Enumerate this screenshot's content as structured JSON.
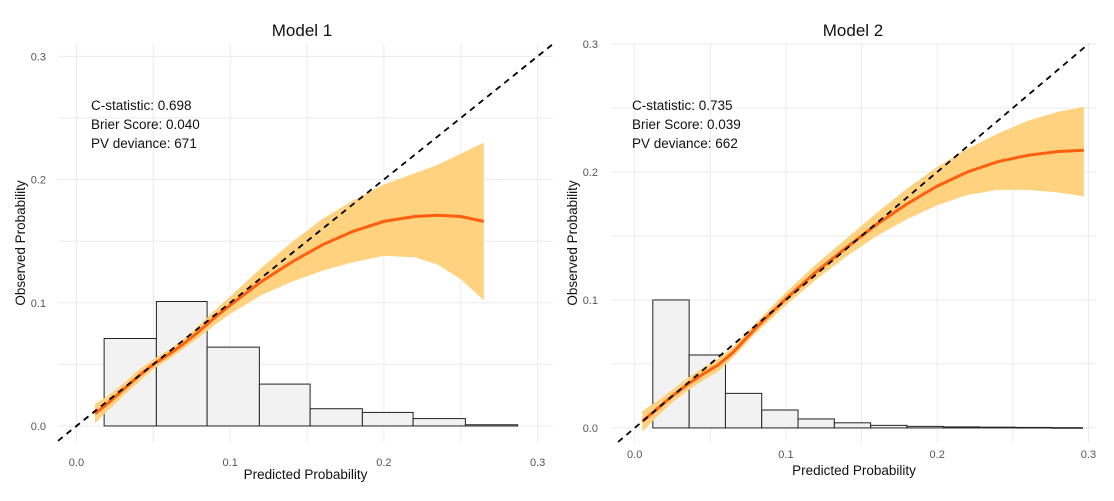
{
  "chart_data": [
    {
      "type": "calibration",
      "title": "Model 1",
      "xlabel": "Predicted Probability",
      "ylabel": "Observed Probability",
      "xlim": [
        -0.012,
        0.31
      ],
      "ylim": [
        -0.013,
        0.31
      ],
      "xticks": [
        0.0,
        0.1,
        0.2,
        0.3
      ],
      "xtick_labels": [
        "0.0",
        "0.1",
        "0.2",
        "0.3"
      ],
      "yticks": [
        0.0,
        0.1,
        0.2,
        0.3
      ],
      "ytick_labels": [
        "0.0",
        "0.1",
        "0.2",
        "0.3"
      ],
      "stats": [
        "C-statistic: 0.698",
        "Brier Score: 0.040",
        "PV deviance: 671"
      ],
      "reference_line": "y = x (dashed)",
      "histogram": {
        "bin_edges": [
          0.018,
          0.052,
          0.085,
          0.119,
          0.152,
          0.186,
          0.219,
          0.253,
          0.287
        ],
        "heights": [
          0.071,
          0.101,
          0.064,
          0.034,
          0.014,
          0.011,
          0.006,
          0.001
        ]
      },
      "smooth": {
        "x": [
          0.012,
          0.02,
          0.03,
          0.04,
          0.05,
          0.06,
          0.07,
          0.08,
          0.09,
          0.1,
          0.12,
          0.14,
          0.16,
          0.18,
          0.2,
          0.22,
          0.235,
          0.25,
          0.265
        ],
        "y": [
          0.01,
          0.018,
          0.029,
          0.04,
          0.05,
          0.058,
          0.067,
          0.077,
          0.088,
          0.098,
          0.117,
          0.133,
          0.147,
          0.158,
          0.166,
          0.17,
          0.171,
          0.17,
          0.166
        ],
        "lower": [
          0.002,
          0.012,
          0.024,
          0.035,
          0.046,
          0.054,
          0.063,
          0.072,
          0.082,
          0.091,
          0.106,
          0.117,
          0.126,
          0.133,
          0.138,
          0.137,
          0.131,
          0.119,
          0.102
        ],
        "upper": [
          0.018,
          0.024,
          0.034,
          0.045,
          0.054,
          0.062,
          0.071,
          0.082,
          0.094,
          0.105,
          0.128,
          0.149,
          0.168,
          0.183,
          0.196,
          0.205,
          0.212,
          0.221,
          0.23
        ]
      }
    },
    {
      "type": "calibration",
      "title": "Model 2",
      "xlabel": "Predicted Probability",
      "ylabel": "Observed Probability",
      "xlim": [
        -0.015,
        0.305
      ],
      "ylim": [
        -0.011,
        0.3
      ],
      "xticks": [
        0.0,
        0.1,
        0.2,
        0.3
      ],
      "xtick_labels": [
        "0.0",
        "0.1",
        "0.2",
        "0.3"
      ],
      "yticks": [
        0.0,
        0.1,
        0.2,
        0.3
      ],
      "ytick_labels": [
        "0.0",
        "0.1",
        "0.2",
        "0.3"
      ],
      "stats": [
        "C-statistic: 0.735",
        "Brier Score: 0.039",
        "PV deviance: 662"
      ],
      "reference_line": "y = x (dashed)",
      "histogram": {
        "bin_edges": [
          0.012,
          0.036,
          0.06,
          0.084,
          0.108,
          0.132,
          0.156,
          0.18,
          0.204,
          0.228,
          0.252,
          0.276,
          0.296
        ],
        "heights": [
          0.1,
          0.057,
          0.027,
          0.014,
          0.007,
          0.004,
          0.002,
          0.0012,
          0.0008,
          0.0006,
          0.0004,
          0.0002
        ]
      },
      "smooth": {
        "x": [
          0.005,
          0.015,
          0.025,
          0.035,
          0.045,
          0.055,
          0.065,
          0.08,
          0.1,
          0.12,
          0.14,
          0.16,
          0.18,
          0.2,
          0.22,
          0.24,
          0.26,
          0.28,
          0.297
        ],
        "y": [
          0.005,
          0.015,
          0.025,
          0.034,
          0.042,
          0.049,
          0.059,
          0.078,
          0.101,
          0.122,
          0.141,
          0.159,
          0.175,
          0.189,
          0.2,
          0.208,
          0.213,
          0.216,
          0.217
        ],
        "lower": [
          -0.003,
          0.009,
          0.02,
          0.029,
          0.037,
          0.044,
          0.055,
          0.074,
          0.096,
          0.116,
          0.134,
          0.15,
          0.163,
          0.174,
          0.182,
          0.186,
          0.186,
          0.184,
          0.181
        ],
        "upper": [
          0.013,
          0.021,
          0.03,
          0.039,
          0.047,
          0.054,
          0.063,
          0.082,
          0.106,
          0.128,
          0.148,
          0.168,
          0.187,
          0.204,
          0.218,
          0.23,
          0.24,
          0.247,
          0.251
        ]
      }
    }
  ]
}
